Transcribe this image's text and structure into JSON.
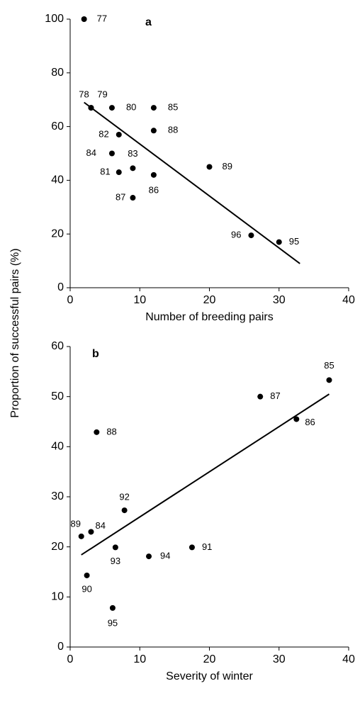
{
  "chart_data": [
    {
      "type": "scatter",
      "panel_label": "a",
      "xlabel": "Number of breeding pairs",
      "ylabel": "Proportion of successful pairs (%)",
      "x": [
        2,
        3,
        3,
        6,
        12,
        7,
        12,
        6,
        9,
        7,
        12,
        9,
        20,
        26,
        30
      ],
      "y": [
        100,
        67,
        67,
        67,
        67,
        57,
        58.5,
        50,
        44.5,
        43,
        42,
        33.5,
        45,
        19.5,
        17
      ],
      "point_labels": [
        "77",
        "78",
        "79",
        "80",
        "85",
        "82",
        "88",
        "84",
        "83",
        "81",
        "86",
        "87",
        "89",
        "96",
        "95"
      ],
      "trend_line": {
        "x": [
          2,
          33
        ],
        "y": [
          69,
          9
        ]
      },
      "color": "#000000",
      "xlim": [
        0,
        40
      ],
      "xticks": [
        0,
        10,
        20,
        30,
        40
      ],
      "ylim": [
        0,
        100
      ],
      "yticks": [
        0,
        20,
        40,
        60,
        80,
        100
      ]
    },
    {
      "type": "scatter",
      "panel_label": "b",
      "xlabel": "Severity of winter",
      "x": [
        37.2,
        27.3,
        32.5,
        3.8,
        7.8,
        3.0,
        1.6,
        6.5,
        11.3,
        17.5,
        2.4,
        6.1
      ],
      "y": [
        53.3,
        50,
        45.5,
        42.9,
        27.3,
        23,
        22.1,
        19.9,
        18.1,
        19.9,
        14.3,
        7.8
      ],
      "point_labels": [
        "85",
        "87",
        "86",
        "88",
        "92",
        "84",
        "89",
        "93",
        "94",
        "91",
        "90",
        "95"
      ],
      "trend_line": {
        "x": [
          1.6,
          37.2
        ],
        "y": [
          18.4,
          50.5
        ]
      },
      "color": "#000000",
      "xlim": [
        0,
        40
      ],
      "xticks": [
        0,
        10,
        20,
        30,
        40
      ],
      "ylim": [
        0,
        60
      ],
      "yticks": [
        0,
        10,
        20,
        30,
        40,
        50,
        60
      ]
    }
  ]
}
